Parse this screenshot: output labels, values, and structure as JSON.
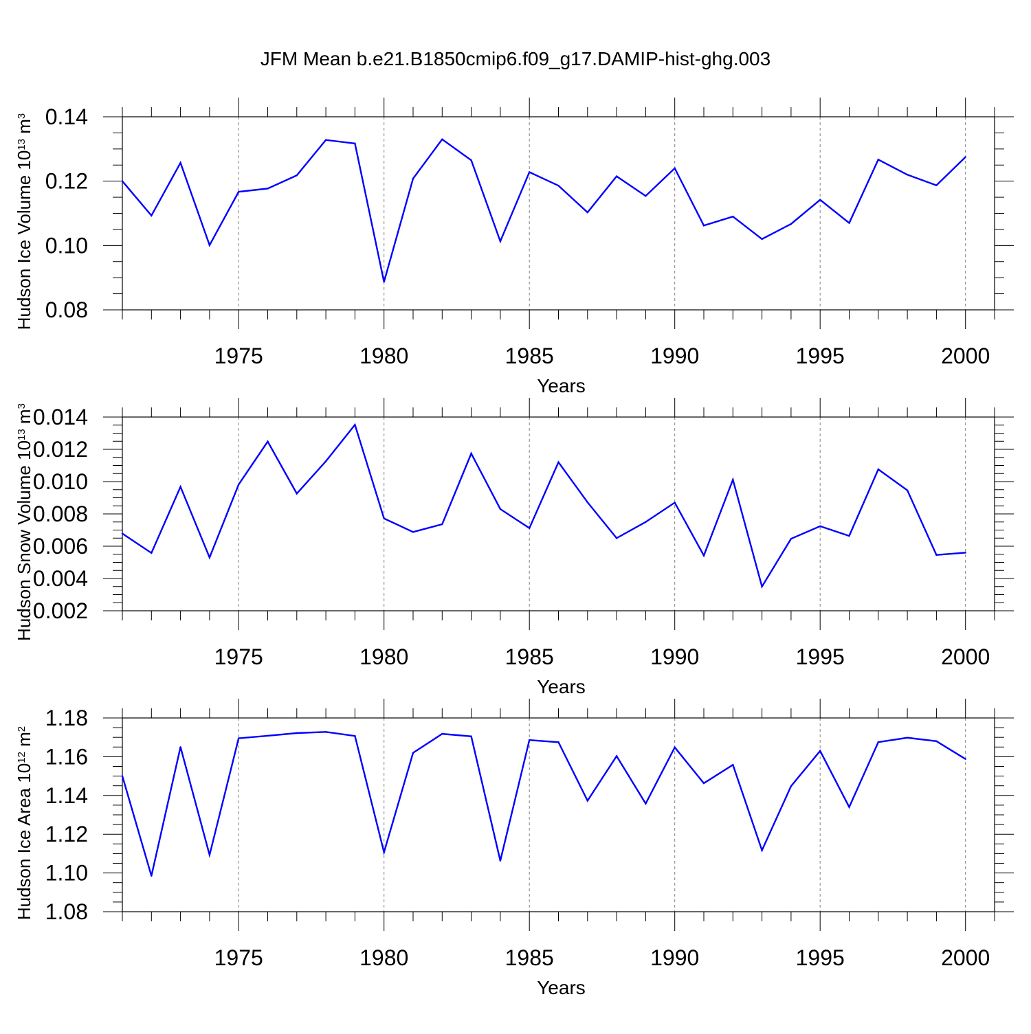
{
  "title": "JFM Mean b.e21.B1850cmip6.f09_g17.DAMIP-hist-ghg.003",
  "colors": {
    "series": "#0000ff",
    "axis": "#000000",
    "grid": "#808080"
  },
  "chart_data": [
    {
      "type": "line",
      "ylabel_prefix": "Hudson Ice Volume 10",
      "ylabel_exp": "13",
      "ylabel_unit": " m",
      "ylabel_unit_exp": "3",
      "xlabel": "Years",
      "xlim": [
        1971,
        2001
      ],
      "ylim": [
        0.08,
        0.14
      ],
      "x_ticks": [
        "1975",
        "1980",
        "1985",
        "1990",
        "1995",
        "2000"
      ],
      "y_ticks": [
        "0.08",
        "0.10",
        "0.12",
        "0.14"
      ],
      "x": [
        1971,
        1972,
        1973,
        1974,
        1975,
        1976,
        1977,
        1978,
        1979,
        1980,
        1981,
        1982,
        1983,
        1984,
        1985,
        1986,
        1987,
        1988,
        1989,
        1990,
        1991,
        1992,
        1993,
        1994,
        1995,
        1996,
        1997,
        1998,
        1999,
        2000
      ],
      "values": [
        0.12,
        0.1093,
        0.1257,
        0.1001,
        0.1167,
        0.1177,
        0.1218,
        0.1328,
        0.1317,
        0.0887,
        0.1208,
        0.133,
        0.1265,
        0.1013,
        0.1228,
        0.1186,
        0.1103,
        0.1215,
        0.1154,
        0.124,
        0.1062,
        0.109,
        0.102,
        0.1067,
        0.1142,
        0.107,
        0.1267,
        0.122,
        0.1187,
        0.1275
      ]
    },
    {
      "type": "line",
      "ylabel_prefix": "Hudson Snow Volume 10",
      "ylabel_exp": "13",
      "ylabel_unit": " m",
      "ylabel_unit_exp": "3",
      "xlabel": "Years",
      "xlim": [
        1971,
        2001
      ],
      "ylim": [
        0.002,
        0.014
      ],
      "x_ticks": [
        "1975",
        "1980",
        "1985",
        "1990",
        "1995",
        "2000"
      ],
      "y_ticks": [
        "0.002",
        "0.004",
        "0.006",
        "0.008",
        "0.010",
        "0.012",
        "0.014"
      ],
      "x": [
        1971,
        1972,
        1973,
        1974,
        1975,
        1976,
        1977,
        1978,
        1979,
        1980,
        1981,
        1982,
        1983,
        1984,
        1985,
        1986,
        1987,
        1988,
        1989,
        1990,
        1991,
        1992,
        1993,
        1994,
        1995,
        1996,
        1997,
        1998,
        1999,
        2000
      ],
      "values": [
        0.00678,
        0.00558,
        0.00968,
        0.0053,
        0.00982,
        0.01248,
        0.00926,
        0.01126,
        0.01352,
        0.00772,
        0.00688,
        0.00736,
        0.01174,
        0.0083,
        0.00712,
        0.0112,
        0.00872,
        0.0065,
        0.0075,
        0.0087,
        0.00542,
        0.01012,
        0.0035,
        0.00646,
        0.00724,
        0.00664,
        0.01076,
        0.00946,
        0.00546,
        0.0056
      ]
    },
    {
      "type": "line",
      "ylabel_prefix": "Hudson Ice Area 10",
      "ylabel_exp": "12",
      "ylabel_unit": " m",
      "ylabel_unit_exp": "2",
      "xlabel": "Years",
      "xlim": [
        1971,
        2001
      ],
      "ylim": [
        1.08,
        1.18
      ],
      "x_ticks": [
        "1975",
        "1980",
        "1985",
        "1990",
        "1995",
        "2000"
      ],
      "y_ticks": [
        "1.08",
        "1.10",
        "1.12",
        "1.14",
        "1.16",
        "1.18"
      ],
      "x": [
        1971,
        1972,
        1973,
        1974,
        1975,
        1976,
        1977,
        1978,
        1979,
        1980,
        1981,
        1982,
        1983,
        1984,
        1985,
        1986,
        1987,
        1988,
        1989,
        1990,
        1991,
        1992,
        1993,
        1994,
        1995,
        1996,
        1997,
        1998,
        1999,
        2000
      ],
      "values": [
        1.15,
        1.0985,
        1.165,
        1.1093,
        1.1695,
        1.1708,
        1.1722,
        1.1728,
        1.1707,
        1.1107,
        1.162,
        1.1718,
        1.1705,
        1.1063,
        1.1686,
        1.1675,
        1.1373,
        1.1603,
        1.1358,
        1.1648,
        1.1463,
        1.1558,
        1.1117,
        1.1448,
        1.163,
        1.134,
        1.1675,
        1.1698,
        1.168,
        1.1588
      ]
    }
  ]
}
